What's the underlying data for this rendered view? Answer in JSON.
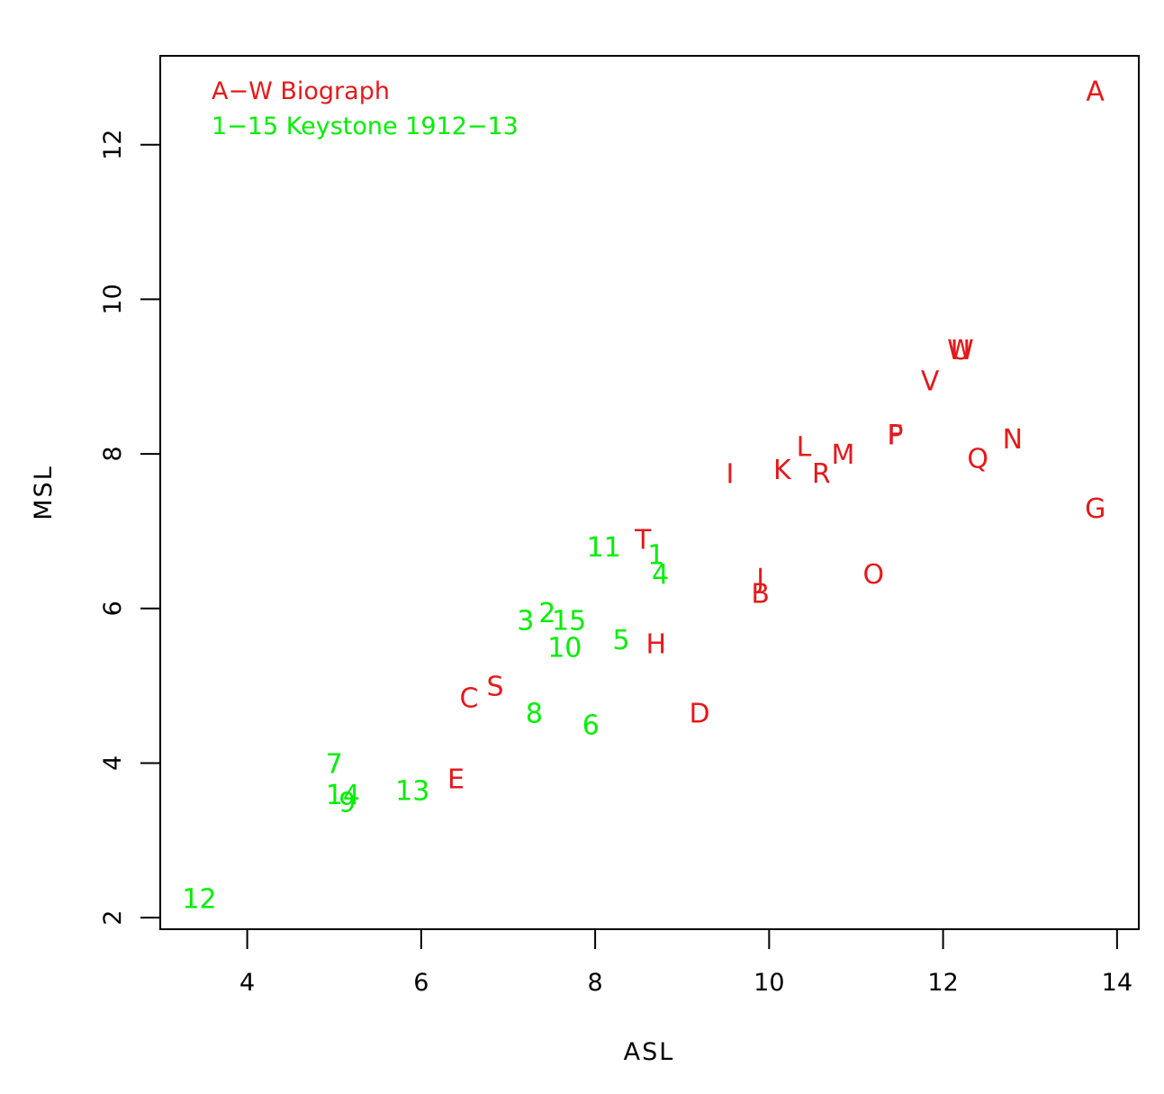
{
  "chart_data": {
    "type": "scatter",
    "title": "",
    "xlabel": "ASL",
    "ylabel": "MSL",
    "xlim": [
      3,
      14.25
    ],
    "ylim": [
      1.85,
      13.15
    ],
    "xticks": [
      4,
      6,
      8,
      10,
      12,
      14
    ],
    "yticks": [
      2,
      4,
      6,
      8,
      10,
      12
    ],
    "grid": false,
    "legend_position": "top-left",
    "legend": [
      {
        "text": "A−W Biograph",
        "color": "#e31a1c"
      },
      {
        "text": "1−15 Keystone 1912−13",
        "color": "#00ee00"
      }
    ],
    "series": [
      {
        "color": "#e31a1c",
        "points": [
          {
            "label": "A",
            "x": 13.75,
            "y": 12.7
          },
          {
            "label": "B",
            "x": 9.9,
            "y": 6.2
          },
          {
            "label": "C",
            "x": 6.55,
            "y": 4.85
          },
          {
            "label": "D",
            "x": 9.2,
            "y": 4.65
          },
          {
            "label": "E",
            "x": 6.4,
            "y": 3.8
          },
          {
            "label": "F",
            "x": 11.45,
            "y": 8.25
          },
          {
            "label": "G",
            "x": 13.75,
            "y": 7.3
          },
          {
            "label": "H",
            "x": 8.7,
            "y": 5.55
          },
          {
            "label": "I",
            "x": 9.55,
            "y": 7.75
          },
          {
            "label": "J",
            "x": 9.9,
            "y": 6.4
          },
          {
            "label": "K",
            "x": 10.15,
            "y": 7.8
          },
          {
            "label": "L",
            "x": 10.4,
            "y": 8.1
          },
          {
            "label": "M",
            "x": 10.85,
            "y": 8.0
          },
          {
            "label": "N",
            "x": 12.8,
            "y": 8.2
          },
          {
            "label": "O",
            "x": 11.2,
            "y": 6.45
          },
          {
            "label": "P",
            "x": 11.45,
            "y": 8.25
          },
          {
            "label": "Q",
            "x": 12.4,
            "y": 7.95
          },
          {
            "label": "R",
            "x": 10.6,
            "y": 7.75
          },
          {
            "label": "S",
            "x": 6.85,
            "y": 5.0
          },
          {
            "label": "T",
            "x": 8.55,
            "y": 6.9
          },
          {
            "label": "U",
            "x": 12.2,
            "y": 9.35
          },
          {
            "label": "V",
            "x": 11.85,
            "y": 8.95
          },
          {
            "label": "W",
            "x": 12.2,
            "y": 9.35
          }
        ]
      },
      {
        "color": "#00ee00",
        "points": [
          {
            "label": "1",
            "x": 8.7,
            "y": 6.7
          },
          {
            "label": "2",
            "x": 7.45,
            "y": 5.95
          },
          {
            "label": "3",
            "x": 7.2,
            "y": 5.85
          },
          {
            "label": "4",
            "x": 8.75,
            "y": 6.45
          },
          {
            "label": "5",
            "x": 8.3,
            "y": 5.6
          },
          {
            "label": "6",
            "x": 7.95,
            "y": 4.5
          },
          {
            "label": "7",
            "x": 5.0,
            "y": 4.0
          },
          {
            "label": "8",
            "x": 7.3,
            "y": 4.65
          },
          {
            "label": "9",
            "x": 5.15,
            "y": 3.5
          },
          {
            "label": "10",
            "x": 7.65,
            "y": 5.5
          },
          {
            "label": "11",
            "x": 8.1,
            "y": 6.8
          },
          {
            "label": "12",
            "x": 3.45,
            "y": 2.25
          },
          {
            "label": "13",
            "x": 5.9,
            "y": 3.65
          },
          {
            "label": "14",
            "x": 5.1,
            "y": 3.6
          },
          {
            "label": "15",
            "x": 7.7,
            "y": 5.85
          }
        ]
      }
    ]
  }
}
